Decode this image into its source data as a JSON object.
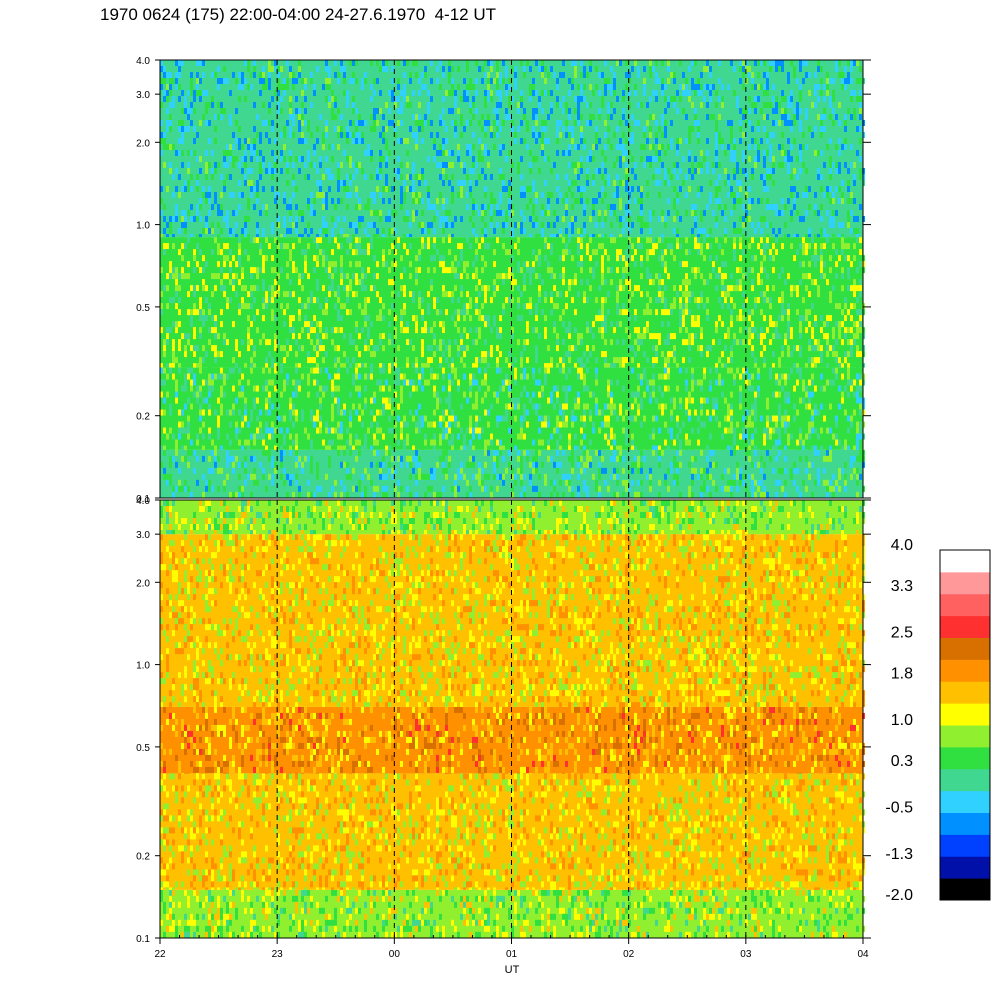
{
  "title": "1970 0624 (175) 22:00-04:00 24-27.6.1970  4-12 UT",
  "colors": {
    "scale": [
      "#000000",
      "#0010a8",
      "#0040ff",
      "#0090ff",
      "#30d0ff",
      "#40d890",
      "#30e040",
      "#90f030",
      "#ffff00",
      "#ffc000",
      "#ff9000",
      "#d87000",
      "#ff3030",
      "#ff6060",
      "#ff9898",
      "#ffffff"
    ],
    "frame": "#000000"
  },
  "chart_data": [
    {
      "type": "heatmap",
      "panel": "upper",
      "x_ticks": [
        "22",
        "23",
        "00",
        "01",
        "02",
        "03",
        "04"
      ],
      "y_ticks": [
        "0.1",
        "0.2",
        "0.5",
        "1.0",
        "2.0",
        "3.0",
        "4.0"
      ],
      "y_tick_values": [
        0.1,
        0.2,
        0.5,
        1.0,
        2.0,
        3.0,
        4.0
      ],
      "ylim": [
        0.1,
        4.0
      ],
      "y_scale": "log",
      "x_range_ut": [
        22,
        28
      ],
      "time_markers": [
        "23",
        "00",
        "01",
        "02",
        "03"
      ],
      "bands": [
        {
          "y_from": 0.1,
          "y_to": 0.15,
          "value": 0.3
        },
        {
          "y_from": 0.15,
          "y_to": 0.3,
          "value": 0.6
        },
        {
          "y_from": 0.3,
          "y_to": 0.9,
          "value": 0.8
        },
        {
          "y_from": 0.9,
          "y_to": 4.0,
          "value": 0.1
        }
      ]
    },
    {
      "type": "heatmap",
      "panel": "lower",
      "x_ticks": [
        "22",
        "23",
        "00",
        "01",
        "02",
        "03",
        "04"
      ],
      "xlabel": "UT",
      "y_ticks": [
        "0.1",
        "0.2",
        "0.5",
        "1.0",
        "2.0",
        "3.0",
        "4.0"
      ],
      "y_tick_values": [
        0.1,
        0.2,
        0.5,
        1.0,
        2.0,
        3.0,
        4.0
      ],
      "ylim": [
        0.1,
        4.0
      ],
      "y_scale": "log",
      "x_range_ut": [
        22,
        28
      ],
      "time_markers": [
        "23",
        "00",
        "01",
        "02",
        "03"
      ],
      "bands": [
        {
          "y_from": 0.1,
          "y_to": 0.15,
          "value": 1.0
        },
        {
          "y_from": 0.15,
          "y_to": 0.4,
          "value": 1.6
        },
        {
          "y_from": 0.4,
          "y_to": 0.7,
          "value": 2.1
        },
        {
          "y_from": 0.7,
          "y_to": 3.0,
          "value": 1.6
        },
        {
          "y_from": 3.0,
          "y_to": 4.0,
          "value": 1.0
        }
      ]
    },
    {
      "type": "colorbar",
      "ticks": [
        "4.0",
        "3.3",
        "2.5",
        "1.8",
        "1.0",
        "0.3",
        "-0.5",
        "-1.3",
        "-2.0"
      ],
      "tick_values": [
        4.0,
        3.3,
        2.5,
        1.8,
        1.0,
        0.3,
        -0.5,
        -1.3,
        -2.0
      ],
      "range": [
        -2.0,
        4.0
      ]
    }
  ]
}
